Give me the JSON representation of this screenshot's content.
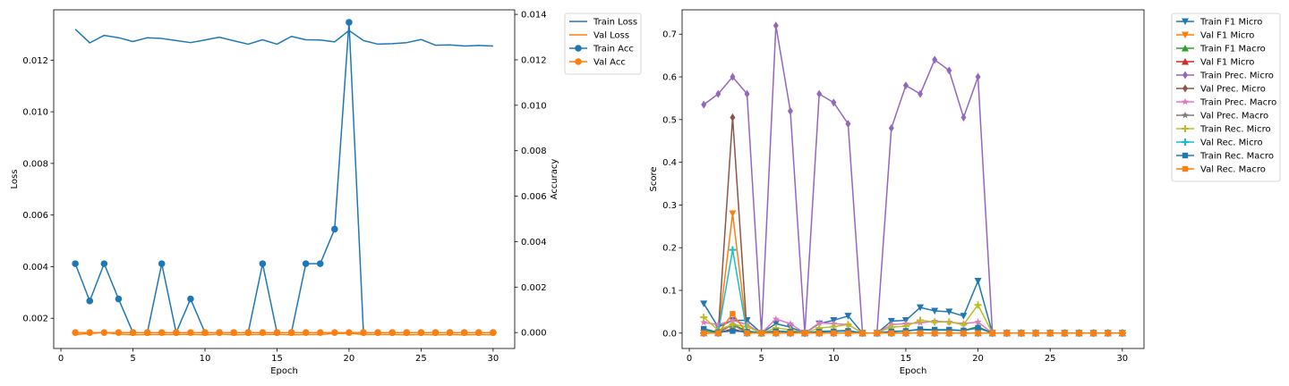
{
  "chart_data": [
    {
      "type": "line",
      "xlabel": "Epoch",
      "ylabel": "Loss",
      "y2label": "Accuracy",
      "xlim": [
        -0.5,
        31.5
      ],
      "ylim": [
        0.00083,
        0.01395
      ],
      "y2lim": [
        -0.0007,
        0.0142
      ],
      "x_ticks": [
        0,
        5,
        10,
        15,
        20,
        25,
        30
      ],
      "y_ticks": [
        0.002,
        0.004,
        0.006,
        0.008,
        0.01,
        0.012
      ],
      "y_tick_labels": [
        "0.002",
        "0.004",
        "0.006",
        "0.008",
        "0.010",
        "0.012"
      ],
      "y2_ticks": [
        0.0,
        0.002,
        0.004,
        0.006,
        0.008,
        0.01,
        0.012,
        0.014
      ],
      "y2_tick_labels": [
        "0.000",
        "0.002",
        "0.004",
        "0.006",
        "0.008",
        "0.010",
        "0.012",
        "0.014"
      ],
      "legend_position": "outside-right",
      "grid": false,
      "x": [
        1,
        2,
        3,
        4,
        5,
        6,
        7,
        8,
        9,
        10,
        11,
        12,
        13,
        14,
        15,
        16,
        17,
        18,
        19,
        20,
        21,
        22,
        23,
        24,
        25,
        26,
        27,
        28,
        29,
        30
      ],
      "series": [
        {
          "name": "Train Loss",
          "axis": "left",
          "color": "#1f77b4",
          "marker": "none",
          "values": [
            0.0132,
            0.01267,
            0.01296,
            0.01287,
            0.01272,
            0.01287,
            0.01284,
            0.01276,
            0.01268,
            0.01278,
            0.01289,
            0.01275,
            0.01262,
            0.01279,
            0.01262,
            0.01292,
            0.01279,
            0.01278,
            0.01271,
            0.01315,
            0.01276,
            0.01262,
            0.01264,
            0.01268,
            0.0128,
            0.01258,
            0.01259,
            0.01255,
            0.01257,
            0.01255
          ]
        },
        {
          "name": "Val Loss",
          "axis": "left",
          "color": "#ff7f0e",
          "marker": "none",
          "values": [
            0.00137,
            0.00141,
            0.00145,
            0.00139,
            0.00136,
            0.00137,
            0.00137,
            0.00137,
            0.00138,
            0.00136,
            0.00139,
            0.00136,
            0.00137,
            0.00137,
            0.00138,
            0.00136,
            0.00137,
            0.00137,
            0.00141,
            0.00142,
            0.00137,
            0.00137,
            0.00137,
            0.00136,
            0.00137,
            0.00136,
            0.00137,
            0.00136,
            0.00137,
            0.00136
          ]
        },
        {
          "name": "Train Acc",
          "axis": "right",
          "color": "#1f77b4",
          "marker": "circle",
          "values": [
            0.00303,
            0.00139,
            0.00303,
            0.00148,
            0.0,
            0.0,
            0.00303,
            0.0,
            0.00148,
            0.0,
            0.0,
            0.0,
            0.0,
            0.00303,
            0.0,
            0.0,
            0.00303,
            0.00303,
            0.00455,
            0.01365,
            0.0,
            0.0,
            0.0,
            0.0,
            0.0,
            0.0,
            0.0,
            0.0,
            0.0,
            0.0
          ]
        },
        {
          "name": "Val Acc",
          "axis": "right",
          "color": "#ff7f0e",
          "marker": "circle",
          "values": [
            0,
            0,
            0,
            0,
            0,
            0,
            0,
            0,
            0,
            0,
            0,
            0,
            0,
            0,
            0,
            0,
            0,
            0,
            0,
            0,
            0,
            0,
            0,
            0,
            0,
            0,
            0,
            0,
            0,
            0
          ]
        }
      ]
    },
    {
      "type": "line",
      "xlabel": "Epoch",
      "ylabel": "Score",
      "xlim": [
        -0.5,
        31.5
      ],
      "ylim": [
        -0.036,
        0.757
      ],
      "x_ticks": [
        0,
        5,
        10,
        15,
        20,
        25,
        30
      ],
      "y_ticks": [
        0.0,
        0.1,
        0.2,
        0.3,
        0.4,
        0.5,
        0.6,
        0.7
      ],
      "y_tick_labels": [
        "0.0",
        "0.1",
        "0.2",
        "0.3",
        "0.4",
        "0.5",
        "0.6",
        "0.7"
      ],
      "legend_position": "outside-right",
      "grid": false,
      "x": [
        1,
        2,
        3,
        4,
        5,
        6,
        7,
        8,
        9,
        10,
        11,
        12,
        13,
        14,
        15,
        16,
        17,
        18,
        19,
        20,
        21,
        22,
        23,
        24,
        25,
        26,
        27,
        28,
        29,
        30
      ],
      "series": [
        {
          "name": "Train F1 Micro",
          "color": "#1f77b4",
          "marker": "triangle-down",
          "values": [
            0.069,
            0.014,
            0.03,
            0.03,
            0,
            0.022,
            0.014,
            0,
            0.022,
            0.03,
            0.04,
            0,
            0,
            0.028,
            0.03,
            0.06,
            0.052,
            0.05,
            0.04,
            0.122,
            0,
            0,
            0,
            0,
            0,
            0,
            0,
            0,
            0,
            0
          ]
        },
        {
          "name": "Val F1 Micro",
          "color": "#ff7f0e",
          "marker": "triangle-down",
          "values": [
            0,
            0,
            0.28,
            0,
            0,
            0,
            0,
            0,
            0,
            0,
            0,
            0,
            0,
            0,
            0,
            0,
            0,
            0,
            0,
            0,
            0,
            0,
            0,
            0,
            0,
            0,
            0,
            0,
            0,
            0
          ]
        },
        {
          "name": "Train F1 Macro",
          "color": "#2ca02c",
          "marker": "triangle-up",
          "values": [
            0.005,
            0.002,
            0.02,
            0.005,
            0,
            0.005,
            0.003,
            0,
            0.004,
            0.005,
            0.006,
            0,
            0,
            0.003,
            0.005,
            0.008,
            0.007,
            0.007,
            0.006,
            0.015,
            0,
            0,
            0,
            0,
            0,
            0,
            0,
            0,
            0,
            0
          ]
        },
        {
          "name": "Val F1 Micro",
          "color": "#d62728",
          "marker": "triangle-up",
          "values": [
            0,
            0,
            0.01,
            0,
            0,
            0,
            0,
            0,
            0,
            0,
            0,
            0,
            0,
            0,
            0,
            0,
            0,
            0,
            0,
            0,
            0,
            0,
            0,
            0,
            0,
            0,
            0,
            0,
            0,
            0
          ]
        },
        {
          "name": "Train Prec. Micro",
          "color": "#9467bd",
          "marker": "diamond",
          "values": [
            0.535,
            0.56,
            0.6,
            0.56,
            0,
            0.72,
            0.52,
            0,
            0.56,
            0.54,
            0.49,
            0,
            0,
            0.48,
            0.58,
            0.56,
            0.64,
            0.615,
            0.505,
            0.6,
            0,
            0,
            0,
            0,
            0,
            0,
            0,
            0,
            0,
            0
          ]
        },
        {
          "name": "Val Prec. Micro",
          "color": "#8c564b",
          "marker": "diamond",
          "values": [
            0,
            0,
            0.505,
            0,
            0,
            0,
            0,
            0,
            0,
            0,
            0,
            0,
            0,
            0,
            0,
            0,
            0,
            0,
            0,
            0,
            0,
            0,
            0,
            0,
            0,
            0,
            0,
            0,
            0,
            0
          ]
        },
        {
          "name": "Train Prec. Macro",
          "color": "#e377c2",
          "marker": "star",
          "values": [
            0.025,
            0.02,
            0.03,
            0.02,
            0,
            0.033,
            0.022,
            0,
            0.024,
            0.022,
            0.02,
            0,
            0,
            0.02,
            0.022,
            0.024,
            0.028,
            0.026,
            0.022,
            0.026,
            0,
            0,
            0,
            0,
            0,
            0,
            0,
            0,
            0,
            0
          ]
        },
        {
          "name": "Val Prec. Macro",
          "color": "#7f7f7f",
          "marker": "star",
          "values": [
            0,
            0,
            0.02,
            0,
            0,
            0,
            0,
            0,
            0,
            0,
            0,
            0,
            0,
            0,
            0,
            0,
            0,
            0,
            0,
            0,
            0,
            0,
            0,
            0,
            0,
            0,
            0,
            0,
            0,
            0
          ]
        },
        {
          "name": "Train Rec. Micro",
          "color": "#bcbd22",
          "marker": "plus",
          "values": [
            0.037,
            0.007,
            0.02,
            0.015,
            0,
            0.012,
            0.008,
            0,
            0.012,
            0.015,
            0.02,
            0,
            0,
            0.014,
            0.016,
            0.03,
            0.026,
            0.026,
            0.02,
            0.066,
            0,
            0,
            0,
            0,
            0,
            0,
            0,
            0,
            0,
            0
          ]
        },
        {
          "name": "Val Rec. Micro",
          "color": "#17becf",
          "marker": "plus",
          "values": [
            0,
            0,
            0.195,
            0,
            0,
            0,
            0,
            0,
            0,
            0,
            0,
            0,
            0,
            0,
            0,
            0,
            0,
            0,
            0,
            0,
            0,
            0,
            0,
            0,
            0,
            0,
            0,
            0,
            0,
            0
          ]
        },
        {
          "name": "Train Rec. Macro",
          "color": "#1f77b4",
          "marker": "square",
          "values": [
            0.01,
            0.002,
            0.005,
            0.003,
            0,
            0.004,
            0.003,
            0,
            0.003,
            0.004,
            0.005,
            0,
            0,
            0.004,
            0.005,
            0.009,
            0.008,
            0.008,
            0.006,
            0.012,
            0,
            0,
            0,
            0,
            0,
            0,
            0,
            0,
            0,
            0
          ]
        },
        {
          "name": "Val Rec. Macro",
          "color": "#ff7f0e",
          "marker": "square",
          "values": [
            0,
            0,
            0.045,
            0,
            0,
            0,
            0,
            0,
            0,
            0,
            0,
            0,
            0,
            0,
            0,
            0,
            0,
            0,
            0,
            0,
            0,
            0,
            0,
            0,
            0,
            0,
            0,
            0,
            0,
            0
          ]
        }
      ]
    }
  ]
}
